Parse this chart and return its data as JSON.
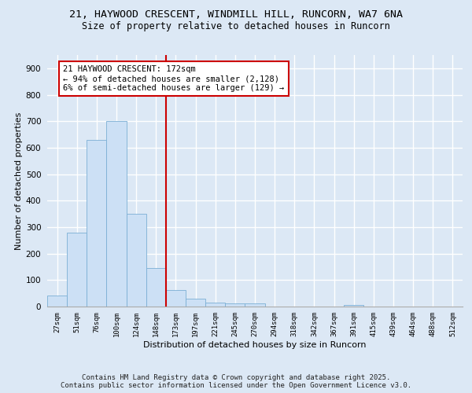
{
  "title_line1": "21, HAYWOOD CRESCENT, WINDMILL HILL, RUNCORN, WA7 6NA",
  "title_line2": "Size of property relative to detached houses in Runcorn",
  "xlabel": "Distribution of detached houses by size in Runcorn",
  "ylabel": "Number of detached properties",
  "bar_color": "#cce0f5",
  "bar_edge_color": "#7bafd4",
  "background_color": "#dce8f5",
  "fig_background_color": "#dce8f5",
  "grid_color": "#ffffff",
  "annotation_box_color": "#cc0000",
  "vline_color": "#cc0000",
  "bin_labels": [
    "27sqm",
    "51sqm",
    "76sqm",
    "100sqm",
    "124sqm",
    "148sqm",
    "173sqm",
    "197sqm",
    "221sqm",
    "245sqm",
    "270sqm",
    "294sqm",
    "318sqm",
    "342sqm",
    "367sqm",
    "391sqm",
    "415sqm",
    "439sqm",
    "464sqm",
    "488sqm",
    "512sqm"
  ],
  "bar_heights": [
    42,
    280,
    630,
    700,
    350,
    145,
    63,
    30,
    15,
    12,
    12,
    0,
    0,
    0,
    0,
    5,
    0,
    0,
    0,
    0,
    0
  ],
  "ylim": [
    0,
    950
  ],
  "yticks": [
    0,
    100,
    200,
    300,
    400,
    500,
    600,
    700,
    800,
    900
  ],
  "annotation_text": "21 HAYWOOD CRESCENT: 172sqm\n← 94% of detached houses are smaller (2,128)\n6% of semi-detached houses are larger (129) →",
  "vline_x_index": 5.5,
  "footer_text": "Contains HM Land Registry data © Crown copyright and database right 2025.\nContains public sector information licensed under the Open Government Licence v3.0.",
  "title_fontsize": 9.5,
  "subtitle_fontsize": 8.5,
  "annotation_fontsize": 7.5,
  "footer_fontsize": 6.5,
  "ylabel_fontsize": 8,
  "xlabel_fontsize": 8,
  "ytick_fontsize": 7.5,
  "xtick_fontsize": 6.5
}
